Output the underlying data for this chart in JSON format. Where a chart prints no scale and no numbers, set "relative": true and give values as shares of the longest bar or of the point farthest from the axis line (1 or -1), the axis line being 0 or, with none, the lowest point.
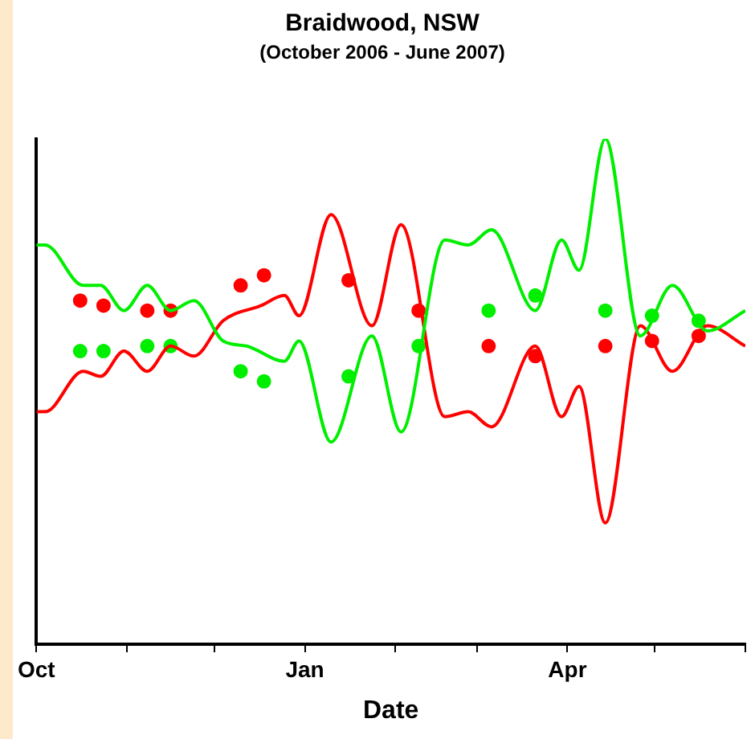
{
  "chart_data": {
    "type": "line",
    "title": "Braidwood, NSW",
    "subtitle": "(October 2006 - June 2007)",
    "xlabel": "Date",
    "relative": true,
    "grid": false,
    "legend": false,
    "marker": "none",
    "line_style": "solid",
    "xlim": [
      "2006-10-01",
      "2007-06-01"
    ],
    "xticks": [
      {
        "value": "2006-10-01",
        "label": "Oct"
      },
      {
        "value": "2006-11-01",
        "label": null
      },
      {
        "value": "2006-12-01",
        "label": null
      },
      {
        "value": "2007-01-01",
        "label": "Jan"
      },
      {
        "value": "2007-02-01",
        "label": null
      },
      {
        "value": "2007-03-01",
        "label": null
      },
      {
        "value": "2007-04-01",
        "label": "Apr"
      },
      {
        "value": "2007-05-01",
        "label": null
      },
      {
        "value": "2007-06-01",
        "label": null
      }
    ],
    "series": [
      {
        "color": "#00ee00",
        "x": [
          "2006-10-01",
          "2006-10-04",
          "2006-10-17",
          "2006-10-23",
          "2006-10-31",
          "2006-11-08",
          "2006-11-16",
          "2006-11-24",
          "2006-12-04",
          "2006-12-12",
          "2006-12-25",
          "2006-12-30",
          "2007-01-10",
          "2007-01-24",
          "2007-02-03",
          "2007-02-18",
          "2007-02-26",
          "2007-03-06",
          "2007-03-21",
          "2007-03-30",
          "2007-04-05",
          "2007-04-14",
          "2007-04-26",
          "2007-05-07",
          "2007-05-19",
          "2007-06-01"
        ],
        "values": [
          0.79,
          0.79,
          0.71,
          0.71,
          0.66,
          0.71,
          0.66,
          0.68,
          0.6,
          0.59,
          0.56,
          0.6,
          0.4,
          0.61,
          0.42,
          0.8,
          0.79,
          0.82,
          0.66,
          0.8,
          0.74,
          1,
          0.61,
          0.71,
          0.62,
          0.66
        ]
      },
      {
        "color": "#ff0000",
        "x": [
          "2006-10-01",
          "2006-10-04",
          "2006-10-17",
          "2006-10-23",
          "2006-10-31",
          "2006-11-08",
          "2006-11-16",
          "2006-11-24",
          "2006-12-04",
          "2006-12-17",
          "2006-12-25",
          "2006-12-30",
          "2007-01-10",
          "2007-01-24",
          "2007-02-03",
          "2007-02-18",
          "2007-02-26",
          "2007-03-06",
          "2007-03-21",
          "2007-03-30",
          "2007-04-05",
          "2007-04-14",
          "2007-04-26",
          "2007-05-07",
          "2007-05-19",
          "2007-06-01"
        ],
        "values": [
          0.46,
          0.46,
          0.54,
          0.53,
          0.58,
          0.54,
          0.59,
          0.57,
          0.64,
          0.67,
          0.69,
          0.65,
          0.85,
          0.63,
          0.83,
          0.45,
          0.46,
          0.43,
          0.59,
          0.45,
          0.51,
          0.24,
          0.63,
          0.54,
          0.63,
          0.59
        ]
      },
      {
        "type": "scatter",
        "color": "#ff0000",
        "marker": "circle",
        "x": [
          "2006-10-16",
          "2006-10-24",
          "2006-11-08",
          "2006-11-16",
          "2006-12-10",
          "2006-12-18",
          "2007-01-16",
          "2007-02-09",
          "2007-03-05",
          "2007-03-21",
          "2007-04-14",
          "2007-04-30",
          "2007-05-16"
        ],
        "values": [
          0.68,
          0.67,
          0.66,
          0.66,
          0.71,
          0.73,
          0.72,
          0.66,
          0.59,
          0.57,
          0.59,
          0.6,
          0.61
        ]
      },
      {
        "type": "scatter",
        "color": "#00ee00",
        "marker": "circle",
        "x": [
          "2006-10-16",
          "2006-10-24",
          "2006-11-08",
          "2006-11-16",
          "2006-12-10",
          "2006-12-18",
          "2007-01-16",
          "2007-02-09",
          "2007-03-05",
          "2007-03-21",
          "2007-04-14",
          "2007-04-30",
          "2007-05-16"
        ],
        "values": [
          0.58,
          0.58,
          0.59,
          0.59,
          0.54,
          0.52,
          0.53,
          0.59,
          0.66,
          0.69,
          0.66,
          0.65,
          0.64
        ]
      }
    ]
  }
}
